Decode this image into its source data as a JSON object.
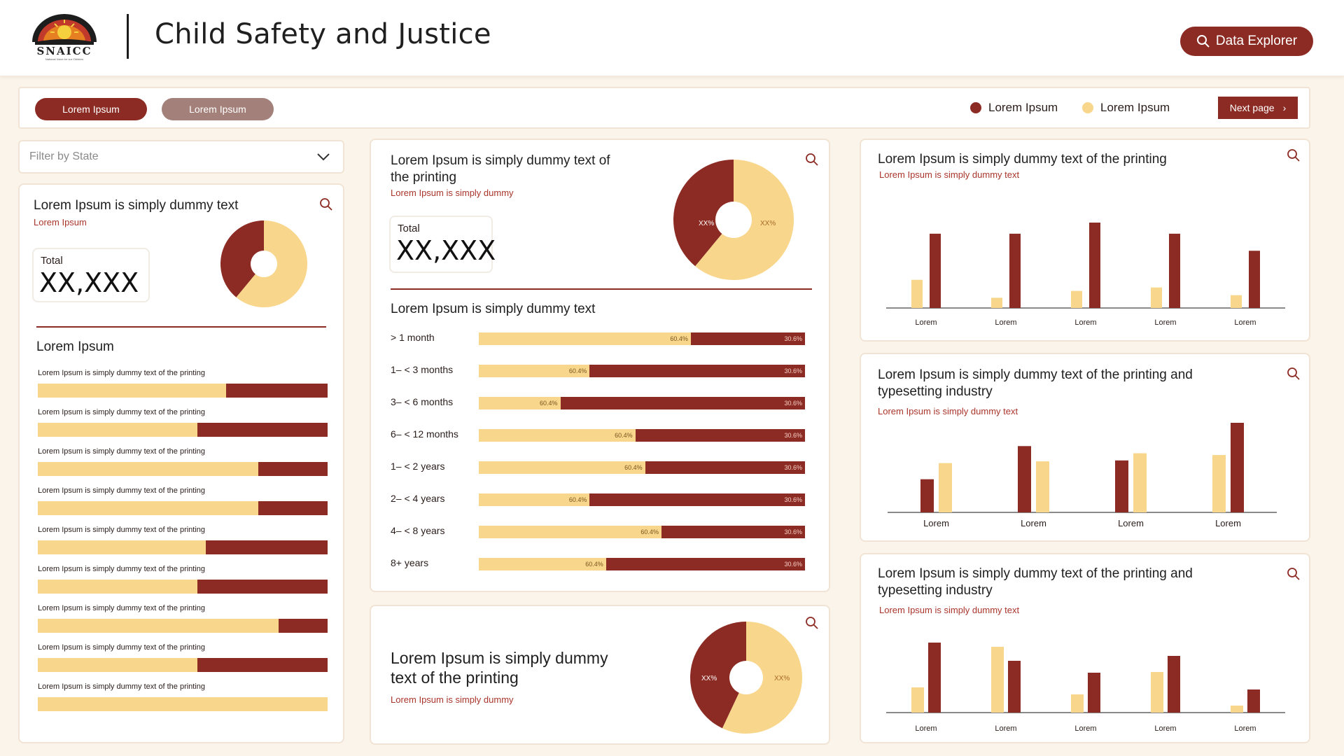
{
  "header": {
    "title": "Child Safety and Justice",
    "logo_text": "SNAICC",
    "logo_subtext": "National Voice for our Children",
    "data_explorer_label": "Data Explorer"
  },
  "toolbar": {
    "pill_1": "Lorem Ipsum",
    "pill_2": "Lorem Ipsum",
    "legend_1": "Lorem Ipsum",
    "legend_2": "Lorem Ipsum",
    "next_page_label": "Next page"
  },
  "colors": {
    "primary": "#8c2b23",
    "secondary": "#f8d68b",
    "muted": "#a3807a"
  },
  "filter": {
    "placeholder": "Filter by State"
  },
  "left_card": {
    "title": "Lorem Ipsum is simply dummy text",
    "subtitle": "Lorem Ipsum",
    "total_label": "Total",
    "total_value": "XX,XXX",
    "section_title": "Lorem Ipsum",
    "rows": [
      {
        "label": "Lorem Ipsum is simply dummy text of the printing",
        "yellow_fraction": 0.65
      },
      {
        "label": "Lorem Ipsum is simply dummy text of the printing",
        "yellow_fraction": 0.55
      },
      {
        "label": "Lorem Ipsum is simply dummy text of the printing",
        "yellow_fraction": 0.76
      },
      {
        "label": "Lorem Ipsum is simply dummy text of the printing",
        "yellow_fraction": 0.76
      },
      {
        "label": "Lorem Ipsum is simply dummy text of the printing",
        "yellow_fraction": 0.58
      },
      {
        "label": "Lorem Ipsum is simply dummy text of the printing",
        "yellow_fraction": 0.55
      },
      {
        "label": "Lorem Ipsum is simply dummy text of the printing",
        "yellow_fraction": 0.83
      },
      {
        "label": "Lorem Ipsum is simply dummy text of the printing",
        "yellow_fraction": 0.55
      },
      {
        "label": "Lorem Ipsum is simply dummy text of the printing",
        "yellow_fraction": 1.0
      }
    ]
  },
  "middle_card": {
    "title": "Lorem Ipsum is simply dummy text of the printing",
    "subtitle": "Lorem Ipsum is simply dummy",
    "total_label": "Total",
    "total_value": "XX,XXX",
    "donut": {
      "red_label": "XX%",
      "yellow_label": "XX%",
      "red_fraction": 0.39
    },
    "section_title": "Lorem Ipsum is simply dummy text",
    "rows": [
      {
        "label": "> 1 month",
        "yellow_fraction": 0.65,
        "yellow_pct": "60.4%",
        "red_pct": "30.6%"
      },
      {
        "label": "1– < 3 months",
        "yellow_fraction": 0.34,
        "yellow_pct": "60.4%",
        "red_pct": "30.6%"
      },
      {
        "label": "3– < 6 months",
        "yellow_fraction": 0.25,
        "yellow_pct": "60.4%",
        "red_pct": "30.6%"
      },
      {
        "label": "6– < 12 months",
        "yellow_fraction": 0.48,
        "yellow_pct": "60.4%",
        "red_pct": "30.6%"
      },
      {
        "label": "1– < 2 years",
        "yellow_fraction": 0.51,
        "yellow_pct": "60.4%",
        "red_pct": "30.6%"
      },
      {
        "label": "2– < 4 years",
        "yellow_fraction": 0.34,
        "yellow_pct": "60.4%",
        "red_pct": "30.6%"
      },
      {
        "label": "4– < 8 years",
        "yellow_fraction": 0.56,
        "yellow_pct": "60.4%",
        "red_pct": "30.6%"
      },
      {
        "label": "8+ years",
        "yellow_fraction": 0.39,
        "yellow_pct": "60.4%",
        "red_pct": "30.6%"
      }
    ]
  },
  "bottom_middle_card": {
    "title": "Lorem Ipsum is simply dummy text of the printing",
    "subtitle": "Lorem Ipsum is simply dummy",
    "donut": {
      "red_label": "XX%",
      "yellow_label": "XX%",
      "red_fraction": 0.43
    }
  },
  "chart_data": [
    {
      "type": "bar",
      "title": "Lorem Ipsum is simply dummy text of the printing",
      "subtitle": "Lorem Ipsum is simply dummy text",
      "categories": [
        "Lorem",
        "Lorem",
        "Lorem",
        "Lorem",
        "Lorem"
      ],
      "series": [
        {
          "color": "#f8d68b",
          "values": [
            33,
            12,
            20,
            24,
            15
          ]
        },
        {
          "color": "#8c2b23",
          "values": [
            87,
            87,
            100,
            87,
            67
          ]
        }
      ],
      "ylim": [
        0,
        100
      ]
    },
    {
      "type": "bar",
      "title": "Lorem Ipsum is simply dummy text of the printing and typesetting industry",
      "subtitle": "Lorem Ipsum is simply dummy text",
      "categories": [
        "Lorem",
        "Lorem",
        "Lorem",
        "Lorem"
      ],
      "series": [
        {
          "color": "#8c2b23",
          "values": [
            37,
            74,
            58,
            100
          ]
        },
        {
          "color": "#f8d68b",
          "values": [
            55,
            57,
            66,
            64
          ]
        }
      ],
      "series_order_in_group": [
        [
          0,
          1
        ],
        [
          0,
          1
        ],
        [
          0,
          1
        ],
        [
          1,
          0
        ]
      ],
      "ylim": [
        0,
        100
      ]
    },
    {
      "type": "bar",
      "title": "Lorem Ipsum is simply dummy text of the printing and typesetting industry",
      "subtitle": "Lorem Ipsum is simply dummy text",
      "categories": [
        "Lorem",
        "Lorem",
        "Lorem",
        "Lorem",
        "Lorem"
      ],
      "series": [
        {
          "color": "#f8d68b",
          "values": [
            36,
            94,
            26,
            58,
            10
          ]
        },
        {
          "color": "#8c2b23",
          "values": [
            100,
            74,
            57,
            81,
            33
          ]
        }
      ],
      "ylim": [
        0,
        100
      ]
    }
  ]
}
